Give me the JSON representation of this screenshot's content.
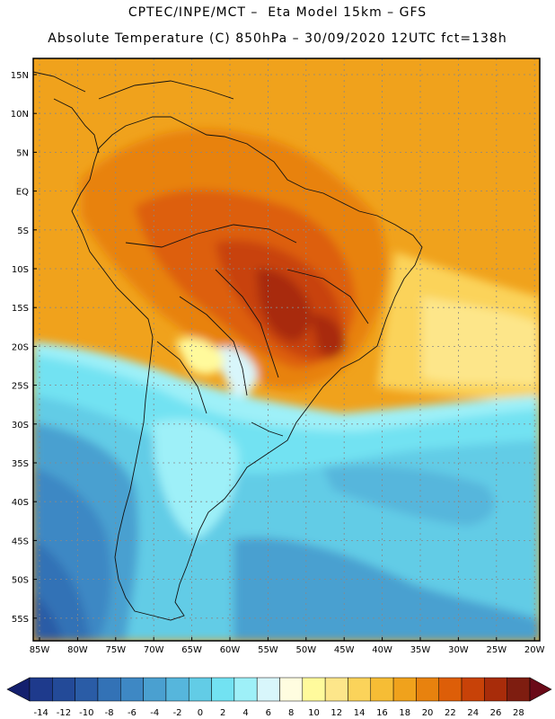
{
  "header": {
    "line1": "CPTEC/INPE/MCT –  Eta Model 15km – GFS",
    "line2": "Absolute Temperature (C) 850hPa – 30/09/2020 12UTC fct=138h"
  },
  "map": {
    "lat_labels": [
      "15N",
      "10N",
      "5N",
      "EQ",
      "5S",
      "10S",
      "15S",
      "20S",
      "25S",
      "30S",
      "35S",
      "40S",
      "45S",
      "50S",
      "55S"
    ],
    "lon_labels": [
      "85W",
      "80W",
      "75W",
      "70W",
      "65W",
      "60W",
      "55W",
      "50W",
      "45W",
      "40W",
      "35W",
      "30W",
      "25W",
      "20W"
    ],
    "grid": true
  },
  "colorbar": {
    "labels": [
      "-14",
      "-12",
      "-10",
      "-8",
      "-6",
      "-4",
      "-2",
      "0",
      "2",
      "4",
      "6",
      "8",
      "10",
      "12",
      "14",
      "16",
      "18",
      "20",
      "22",
      "24",
      "26",
      "28"
    ],
    "colors": [
      "#1e3a8c",
      "#234a98",
      "#2a5ca6",
      "#3372b6",
      "#3e88c4",
      "#4aa0d0",
      "#56b6dc",
      "#62cce6",
      "#72e2f2",
      "#9ef0f8",
      "#d8f6fb",
      "#fffde0",
      "#fffa9c",
      "#fde68a",
      "#fbd35a",
      "#f6bd35",
      "#f0a21c",
      "#e8820e",
      "#dd5e08",
      "#c84208",
      "#a82c0a",
      "#7e1d10"
    ],
    "under_color": "#14206e",
    "over_color": "#6a0a18"
  }
}
